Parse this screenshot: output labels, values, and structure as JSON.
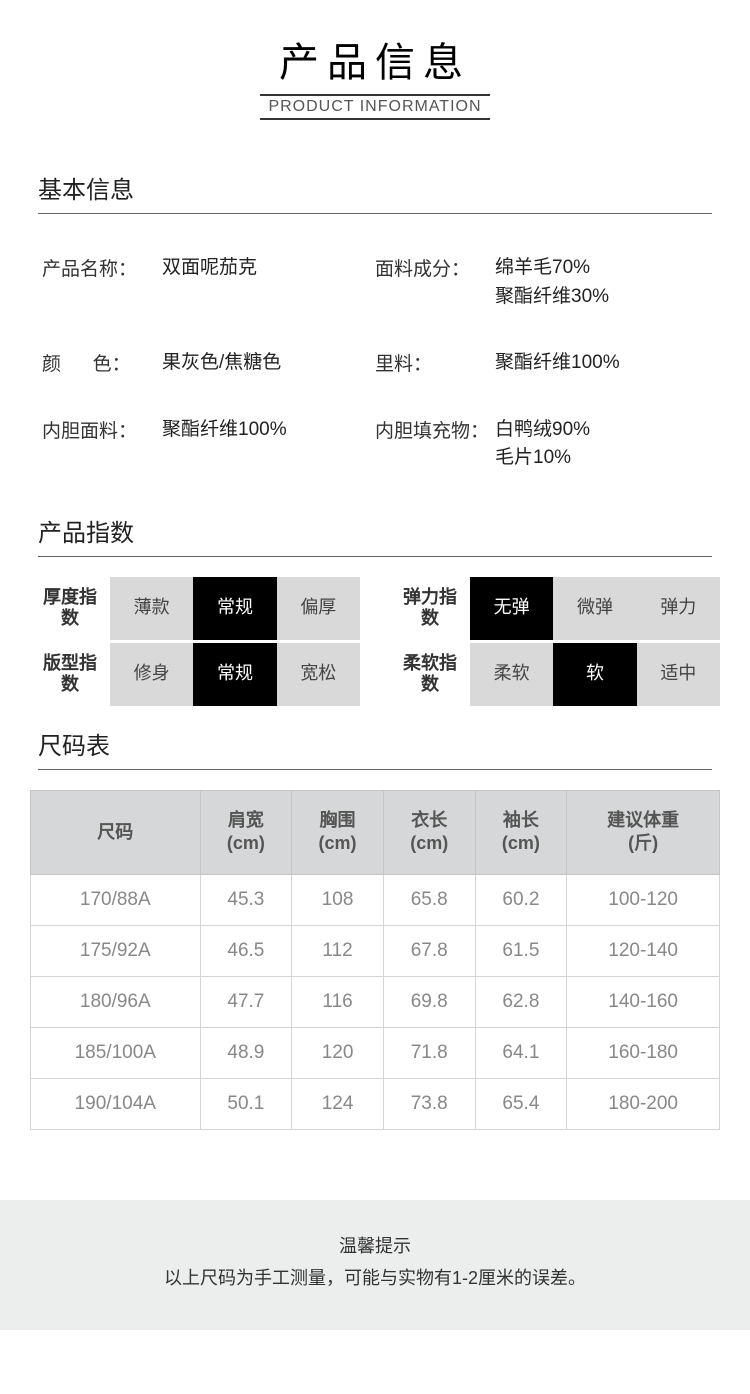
{
  "header": {
    "title_cn": "产品信息",
    "title_en": "PRODUCT INFORMATION"
  },
  "sections": {
    "basic": "基本信息",
    "index": "产品指数",
    "size": "尺码表"
  },
  "basic_info": [
    {
      "label": "产品名称：",
      "value": "双面呢茄克"
    },
    {
      "label": "面料成分：",
      "value": "绵羊毛70%\n聚酯纤维30%"
    },
    {
      "label": "颜      色：",
      "value": "果灰色/焦糖色"
    },
    {
      "label": "里料：",
      "value": "聚酯纤维100%"
    },
    {
      "label": "内胆面料：",
      "value": "聚酯纤维100%"
    },
    {
      "label": "内胆填充物：",
      "value": "白鸭绒90%\n毛片10%"
    }
  ],
  "index": [
    {
      "label": "厚度指数",
      "cells": [
        {
          "t": "薄款",
          "on": false
        },
        {
          "t": "常规",
          "on": true
        },
        {
          "t": "偏厚",
          "on": false
        }
      ]
    },
    {
      "label": "弹力指数",
      "cells": [
        {
          "t": "无弹",
          "on": true
        },
        {
          "t": "微弹",
          "on": false
        },
        {
          "t": "弹力",
          "on": false
        }
      ]
    },
    {
      "label": "版型指数",
      "cells": [
        {
          "t": "修身",
          "on": false
        },
        {
          "t": "常规",
          "on": true
        },
        {
          "t": "宽松",
          "on": false
        }
      ]
    },
    {
      "label": "柔软指数",
      "cells": [
        {
          "t": "柔软",
          "on": false
        },
        {
          "t": "软",
          "on": true
        },
        {
          "t": "适中",
          "on": false
        }
      ]
    }
  ],
  "size_table": {
    "columns": [
      "尺码",
      "肩宽\n(cm)",
      "胸围\n(cm)",
      "衣长\n(cm)",
      "袖长\n(cm)",
      "建议体重\n(斤)"
    ],
    "rows": [
      [
        "170/88A",
        "45.3",
        "108",
        "65.8",
        "60.2",
        "100-120"
      ],
      [
        "175/92A",
        "46.5",
        "112",
        "67.8",
        "61.5",
        "120-140"
      ],
      [
        "180/96A",
        "47.7",
        "116",
        "69.8",
        "62.8",
        "140-160"
      ],
      [
        "185/100A",
        "48.9",
        "120",
        "71.8",
        "64.1",
        "160-180"
      ],
      [
        "190/104A",
        "50.1",
        "124",
        "73.8",
        "65.4",
        "180-200"
      ]
    ]
  },
  "footer": {
    "title": "温馨提示",
    "text": "以上尺码为手工测量，可能与实物有1-2厘米的误差。"
  },
  "colors": {
    "idx_on_bg": "#000000",
    "idx_on_fg": "#ffffff",
    "idx_off_bg": "#d9d9d9",
    "idx_off_fg": "#444444",
    "th_bg": "#d6d7d8",
    "footer_bg": "#eceded"
  }
}
